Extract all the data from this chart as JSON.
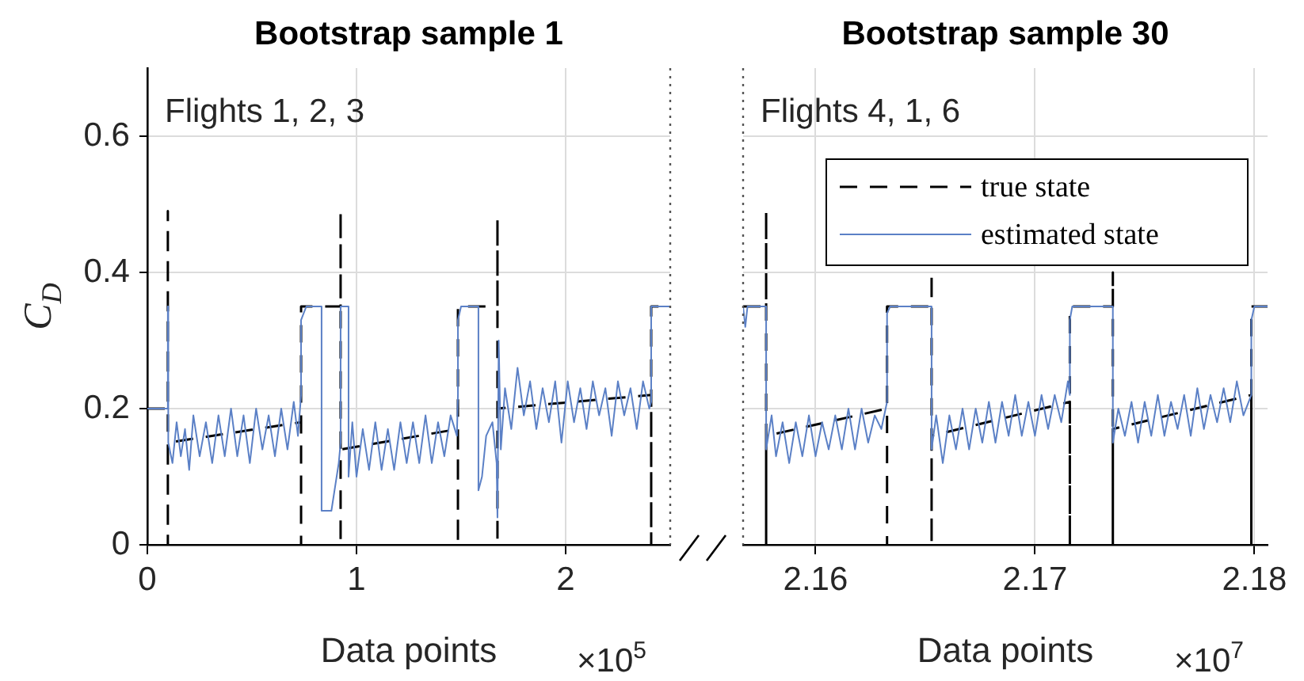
{
  "chart_data": [
    {
      "type": "line",
      "title": "Bootstrap sample 1",
      "xlabel": "Data points",
      "ylabel": "C$_{D}$",
      "annotations": [
        "Flights 1, 2, 3",
        "×10$^{5}$"
      ],
      "xlim": [
        0,
        2.5
      ],
      "xticks": [
        0,
        1,
        2
      ],
      "ylim": [
        0,
        0.7
      ],
      "yticks": [
        0,
        0.2,
        0.4,
        0.6
      ],
      "grid": true,
      "legend": false,
      "series": [
        {
          "color": "#000000",
          "line_style": "dashed",
          "x": [
            0,
            0.098,
            0.098,
            0.098,
            0.098,
            0.735,
            0.735,
            0.735,
            0.924,
            0.924,
            0.924,
            0.924,
            1.485,
            1.485,
            1.485,
            1.674,
            1.674,
            1.674,
            1.674,
            2.409,
            2.409,
            2.409,
            2.5
          ],
          "values": [
            0.2,
            0.2,
            0.49,
            0,
            0.15,
            0.18,
            0,
            0.35,
            0.35,
            0.49,
            0,
            0.14,
            0.17,
            0,
            0.35,
            0.35,
            0.48,
            0,
            0.2,
            0.22,
            0,
            0.35,
            0.35
          ]
        },
        {
          "color": "#5b80c6",
          "x": [
            0,
            0.098,
            0.098,
            0.1,
            0.1,
            0.12,
            0.14,
            0.16,
            0.18,
            0.2,
            0.22,
            0.25,
            0.28,
            0.31,
            0.34,
            0.37,
            0.4,
            0.43,
            0.46,
            0.49,
            0.52,
            0.55,
            0.58,
            0.61,
            0.64,
            0.67,
            0.7,
            0.72,
            0.735,
            0.735,
            0.76,
            0.833,
            0.833,
            0.88,
            0.9,
            0.915,
            0.924,
            0.924,
            0.962,
            0.962,
            0.98,
            1,
            1.03,
            1.06,
            1.09,
            1.12,
            1.15,
            1.18,
            1.21,
            1.24,
            1.27,
            1.3,
            1.33,
            1.36,
            1.39,
            1.42,
            1.45,
            1.48,
            1.485,
            1.485,
            1.5,
            1.583,
            1.583,
            1.6,
            1.62,
            1.65,
            1.67,
            1.674,
            1.68,
            1.69,
            1.71,
            1.74,
            1.77,
            1.8,
            1.83,
            1.86,
            1.89,
            1.92,
            1.95,
            1.98,
            2.01,
            2.04,
            2.07,
            2.1,
            2.13,
            2.16,
            2.19,
            2.22,
            2.25,
            2.28,
            2.31,
            2.34,
            2.37,
            2.4,
            2.409,
            2.409,
            2.5
          ],
          "values": [
            0.2,
            0.2,
            0.35,
            0.35,
            0.15,
            0.12,
            0.18,
            0.13,
            0.17,
            0.11,
            0.19,
            0.13,
            0.18,
            0.12,
            0.19,
            0.13,
            0.2,
            0.13,
            0.19,
            0.12,
            0.2,
            0.14,
            0.19,
            0.13,
            0.2,
            0.14,
            0.21,
            0.16,
            0.22,
            0.33,
            0.35,
            0.35,
            0.05,
            0.05,
            0.09,
            0.12,
            0.15,
            0.35,
            0.35,
            0.1,
            0.18,
            0.1,
            0.17,
            0.11,
            0.18,
            0.11,
            0.17,
            0.11,
            0.18,
            0.12,
            0.18,
            0.12,
            0.19,
            0.12,
            0.18,
            0.13,
            0.19,
            0.16,
            0.22,
            0.33,
            0.35,
            0.35,
            0.08,
            0.1,
            0.16,
            0.18,
            0.12,
            0.04,
            0.3,
            0.14,
            0.23,
            0.17,
            0.26,
            0.19,
            0.24,
            0.17,
            0.23,
            0.18,
            0.24,
            0.15,
            0.24,
            0.18,
            0.23,
            0.17,
            0.24,
            0.19,
            0.23,
            0.16,
            0.24,
            0.19,
            0.23,
            0.17,
            0.24,
            0.2,
            0.21,
            0.35,
            0.35
          ]
        }
      ]
    },
    {
      "type": "line",
      "title": "Bootstrap sample 30",
      "xlabel": "Data points",
      "annotations": [
        "Flights 4, 1, 6",
        "×10$^{7}$"
      ],
      "xlim": [
        2.1567,
        2.1806
      ],
      "xticks": [
        2.16,
        2.17,
        2.18
      ],
      "ylim": [
        0,
        0.7
      ],
      "yticks": [
        0,
        0.2,
        0.4,
        0.6
      ],
      "tick_labels": "x",
      "grid": true,
      "legend": "top right",
      "series": [
        {
          "name": "true state",
          "color": "#000000",
          "line_style": "dashed",
          "x": [
            2.1567,
            2.15775,
            2.15775,
            2.15775,
            2.15775,
            2.16326,
            2.16326,
            2.16326,
            2.16529,
            2.16529,
            2.16529,
            2.16529,
            2.17159,
            2.17159,
            2.17159,
            2.17355,
            2.17355,
            2.17355,
            2.17355,
            2.17986,
            2.17986,
            2.17986,
            2.1806
          ],
          "values": [
            0.35,
            0.35,
            0.49,
            0,
            0.16,
            0.2,
            0,
            0.35,
            0.35,
            0.4,
            0,
            0.16,
            0.21,
            0,
            0.35,
            0.35,
            0.4,
            0,
            0.17,
            0.22,
            0,
            0.35,
            0.35
          ]
        },
        {
          "name": "estimated state",
          "color": "#5b80c6",
          "x": [
            2.1567,
            2.1568,
            2.1569,
            2.15775,
            2.15775,
            2.158,
            2.1582,
            2.1585,
            2.1588,
            2.1591,
            2.1594,
            2.1597,
            2.16,
            2.1603,
            2.1606,
            2.1609,
            2.1612,
            2.1615,
            2.1618,
            2.1621,
            2.1624,
            2.1627,
            2.163,
            2.16326,
            2.16326,
            2.1634,
            2.16529,
            2.16529,
            2.1655,
            2.1658,
            2.1661,
            2.1664,
            2.1667,
            2.167,
            2.1673,
            2.1676,
            2.1679,
            2.1682,
            2.1685,
            2.1688,
            2.1691,
            2.1694,
            2.1697,
            2.17,
            2.1703,
            2.1706,
            2.1709,
            2.1712,
            2.1715,
            2.17159,
            2.17159,
            2.1717,
            2.17355,
            2.17355,
            2.1738,
            2.1741,
            2.1744,
            2.1747,
            2.175,
            2.1753,
            2.1756,
            2.1759,
            2.1762,
            2.1765,
            2.1768,
            2.1771,
            2.1774,
            2.1777,
            2.178,
            2.1783,
            2.1786,
            2.1789,
            2.1792,
            2.1795,
            2.17986,
            2.17986,
            2.18,
            2.1806
          ],
          "values": [
            0.35,
            0.32,
            0.35,
            0.35,
            0.14,
            0.19,
            0.13,
            0.18,
            0.12,
            0.18,
            0.13,
            0.19,
            0.13,
            0.18,
            0.14,
            0.19,
            0.14,
            0.2,
            0.14,
            0.2,
            0.15,
            0.19,
            0.17,
            0.21,
            0.34,
            0.35,
            0.35,
            0.14,
            0.19,
            0.12,
            0.19,
            0.14,
            0.2,
            0.14,
            0.2,
            0.15,
            0.21,
            0.15,
            0.21,
            0.16,
            0.22,
            0.16,
            0.21,
            0.16,
            0.22,
            0.17,
            0.22,
            0.18,
            0.24,
            0.22,
            0.33,
            0.35,
            0.35,
            0.15,
            0.2,
            0.16,
            0.21,
            0.15,
            0.21,
            0.16,
            0.22,
            0.16,
            0.21,
            0.17,
            0.22,
            0.16,
            0.23,
            0.17,
            0.22,
            0.18,
            0.23,
            0.18,
            0.24,
            0.19,
            0.22,
            0.33,
            0.35,
            0.35
          ]
        }
      ]
    }
  ]
}
